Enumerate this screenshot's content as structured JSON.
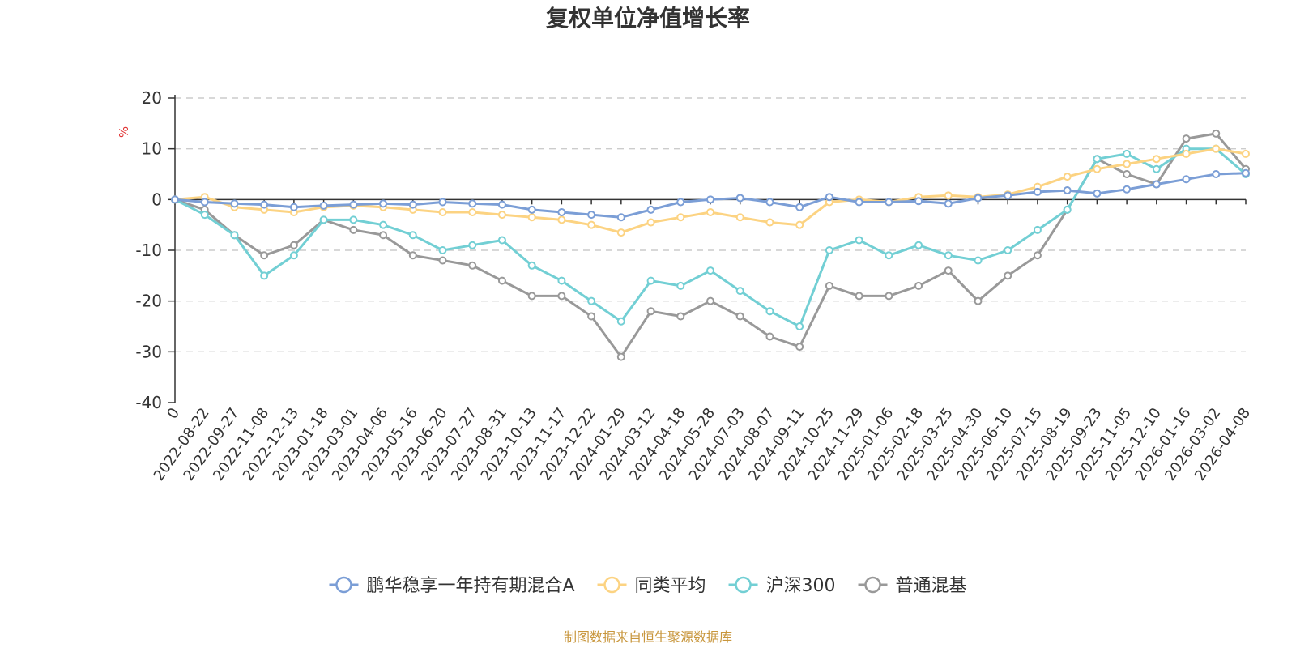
{
  "chart_data": {
    "type": "line",
    "title": "复权单位净值增长率",
    "ylabel": "%",
    "ylim": [
      -40,
      20
    ],
    "yticks": [
      20,
      10,
      0,
      -10,
      -20,
      -30,
      -40
    ],
    "xlabels": [
      "0",
      "2022-08-22",
      "2022-09-27",
      "2022-11-08",
      "2022-12-13",
      "2023-01-18",
      "2023-03-01",
      "2023-04-06",
      "2023-05-16",
      "2023-06-20",
      "2023-07-27",
      "2023-08-31",
      "2023-10-13",
      "2023-11-17",
      "2023-12-22",
      "2024-01-29",
      "2024-03-12",
      "2024-04-18",
      "2024-05-28",
      "2024-07-03",
      "2024-08-07",
      "2024-09-11",
      "2024-10-25",
      "2024-11-29",
      "2025-01-06",
      "2025-02-18",
      "2025-03-25",
      "2025-04-30",
      "2025-06-10",
      "2025-07-15",
      "2025-08-19",
      "2025-09-23",
      "2025-11-05",
      "2025-12-10",
      "2026-01-16",
      "2026-03-02",
      "2026-04-08"
    ],
    "series": [
      {
        "name": "鹏华稳享一年持有期混合A",
        "color": "#7b9ed6",
        "values": [
          0,
          -0.5,
          -0.8,
          -1,
          -1.5,
          -1.2,
          -1,
          -0.8,
          -1,
          -0.5,
          -0.8,
          -1,
          -2,
          -2.5,
          -3,
          -3.5,
          -2,
          -0.5,
          0,
          0.3,
          -0.5,
          -1.5,
          0.5,
          -0.5,
          -0.5,
          -0.3,
          -0.8,
          0.3,
          0.8,
          1.5,
          1.8,
          1.2,
          2,
          3,
          4,
          5,
          5.2
        ]
      },
      {
        "name": "同类平均",
        "color": "#fcd382",
        "values": [
          0,
          0.5,
          -1.5,
          -2,
          -2.5,
          -1.5,
          -1.2,
          -1.5,
          -2,
          -2.5,
          -2.5,
          -3,
          -3.5,
          -4,
          -5,
          -6.5,
          -4.5,
          -3.5,
          -2.5,
          -3.5,
          -4.5,
          -5,
          -0.5,
          0,
          -0.5,
          0.5,
          0.8,
          0.5,
          1,
          2.5,
          4.5,
          6,
          7,
          8,
          9,
          10,
          9
        ]
      },
      {
        "name": "沪深300",
        "color": "#72cfd4",
        "values": [
          0,
          -3,
          -7,
          -15,
          -11,
          -4,
          -4,
          -5,
          -7,
          -10,
          -9,
          -8,
          -13,
          -16,
          -20,
          -24,
          -16,
          -17,
          -14,
          -18,
          -22,
          -25,
          -10,
          -8,
          -11,
          -9,
          -11,
          -12,
          -10,
          -6,
          -2,
          8,
          9,
          6,
          10,
          10,
          5
        ]
      },
      {
        "name": "普通混基",
        "color": "#999999",
        "values": [
          0,
          -2,
          -7,
          -11,
          -9,
          -4,
          -6,
          -7,
          -11,
          -12,
          -13,
          -16,
          -19,
          -19,
          -23,
          -31,
          -22,
          -23,
          -20,
          -23,
          -27,
          -29,
          -17,
          -19,
          -19,
          -17,
          -14,
          -20,
          -15,
          -11,
          -2,
          8,
          5,
          3,
          12,
          13,
          6
        ]
      }
    ],
    "legend_position": "bottom-center"
  },
  "source_note": "制图数据来自恒生聚源数据库"
}
